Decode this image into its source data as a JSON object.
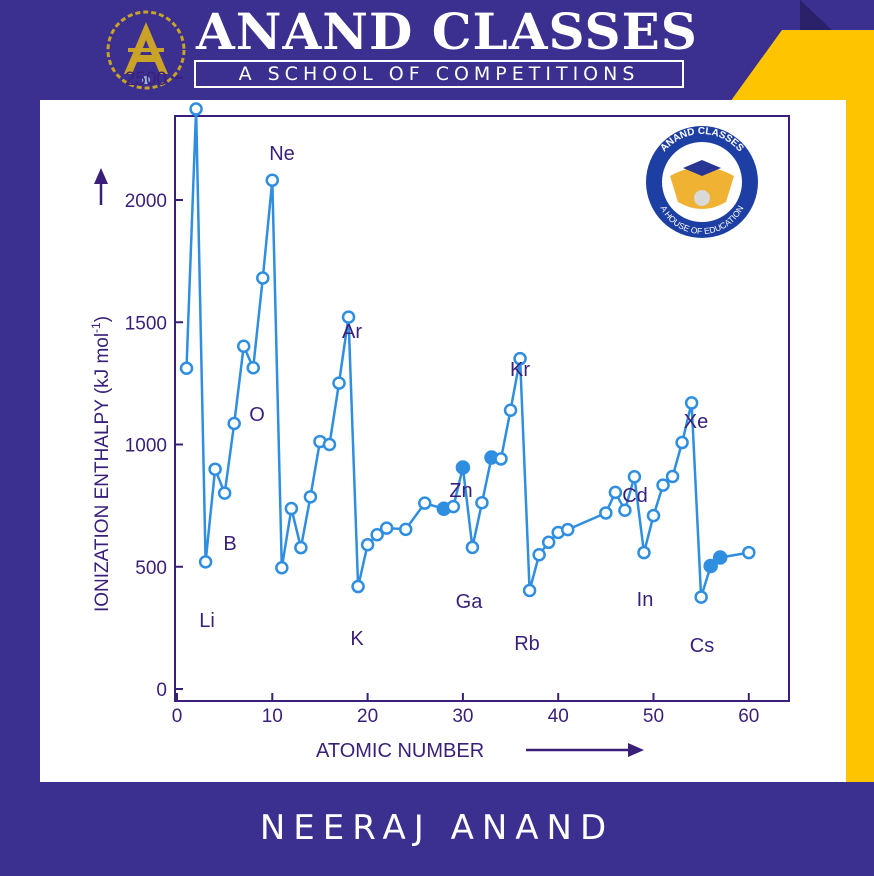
{
  "header": {
    "title": "ANAND CLASSES",
    "subtitle": "A SCHOOL OF  COMPETITIONS"
  },
  "badge": {
    "top_text": "ANAND CLASSES",
    "bottom_text": "A HOUSE OF EDUCATION"
  },
  "footer": {
    "name": "NEERAJ ANAND"
  },
  "colors": {
    "brand": "#3b2f8f",
    "accent": "#ffc400",
    "line": "#2f8ee0",
    "text": "#3a1f7a"
  },
  "chart_data": {
    "type": "line",
    "ylabel_main": "IONIZATION ENTHALPY (kJ mol",
    "ylabel_sup": "-1",
    "ylabel_close": ")",
    "xlabel": "ATOMIC NUMBER",
    "xlim": [
      0,
      64
    ],
    "ylim": [
      0,
      2550
    ],
    "xticks": [
      "0",
      "10",
      "20",
      "30",
      "40",
      "50",
      "60"
    ],
    "yticks": [
      "0",
      "500",
      "1000",
      "1500",
      "2000",
      "2500"
    ],
    "x": [
      1,
      2,
      3,
      4,
      5,
      6,
      7,
      8,
      9,
      10,
      11,
      12,
      13,
      14,
      15,
      16,
      17,
      18,
      19,
      20,
      21,
      22,
      24,
      26,
      28,
      29,
      30,
      31,
      32,
      33,
      34,
      35,
      36,
      37,
      38,
      39,
      40,
      41,
      45,
      46,
      47,
      48,
      49,
      50,
      51,
      52,
      53,
      54,
      55,
      56,
      57,
      60
    ],
    "y": [
      1312,
      2372,
      520,
      899,
      801,
      1086,
      1402,
      1314,
      1681,
      2081,
      496,
      738,
      578,
      786,
      1012,
      1000,
      1251,
      1521,
      419,
      590,
      631,
      658,
      653,
      760,
      737,
      746,
      906,
      579,
      762,
      947,
      941,
      1140,
      1351,
      403,
      549,
      600,
      640,
      652,
      720,
      804,
      731,
      868,
      558,
      709,
      834,
      869,
      1008,
      1170,
      376,
      503,
      538,
      558
    ],
    "filled_points": [
      28,
      30,
      33,
      56,
      57
    ],
    "annotations": [
      {
        "text": "Li"
      },
      {
        "text": "B"
      },
      {
        "text": "O"
      },
      {
        "text": "Ne"
      },
      {
        "text": "Ar"
      },
      {
        "text": "K"
      },
      {
        "text": "Zn"
      },
      {
        "text": "Ga"
      },
      {
        "text": "Kr"
      },
      {
        "text": "Rb"
      },
      {
        "text": "Cd"
      },
      {
        "text": "In"
      },
      {
        "text": "Xe"
      },
      {
        "text": "Cs"
      }
    ]
  }
}
